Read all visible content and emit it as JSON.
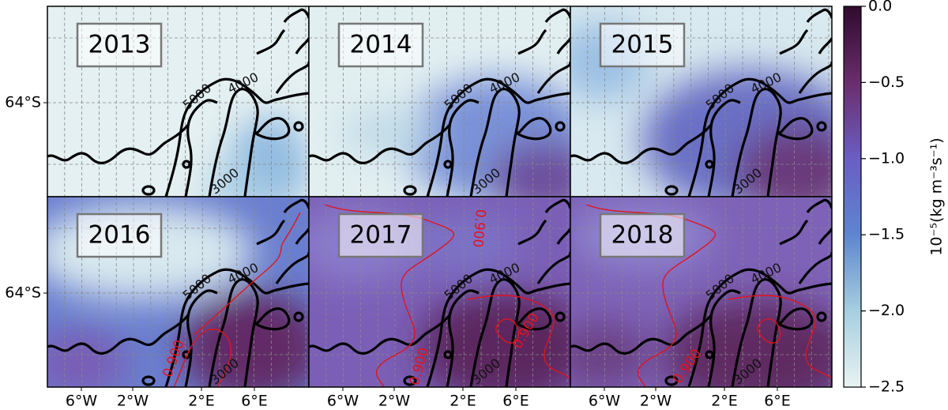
{
  "panels": [
    {
      "label": "2013",
      "contour_labels": [
        "5000",
        "4000",
        "3000"
      ]
    },
    {
      "label": "2014",
      "contour_labels": [
        "5000",
        "4000",
        "3000"
      ]
    },
    {
      "label": "2015",
      "contour_labels": [
        "5000",
        "4000",
        "3000"
      ]
    },
    {
      "label": "2016",
      "contour_labels": [
        "5000",
        "4000",
        "3000"
      ],
      "red_contour_labels": [
        "0.900"
      ]
    },
    {
      "label": "2017",
      "contour_labels": [
        "5000",
        "4000",
        "3000"
      ],
      "red_contour_labels": [
        "0.900",
        "0.900",
        "0.900"
      ]
    },
    {
      "label": "2018",
      "contour_labels": [
        "5000",
        "4000",
        "3000"
      ],
      "red_contour_labels": [
        "0.900"
      ]
    }
  ],
  "x_tick_labels": [
    "6°W",
    "2°W",
    "2°E",
    "6°E"
  ],
  "y_tick_labels": [
    "64°S"
  ],
  "colorbar": {
    "label": "10⁻⁵(kg m⁻³s⁻¹)",
    "lim": [
      -2.5,
      0
    ],
    "ticks": [
      {
        "value": 0,
        "label": "0.0"
      },
      {
        "value": -0.5,
        "label": "−0.5"
      },
      {
        "value": -1,
        "label": "−1.0"
      },
      {
        "value": -1.5,
        "label": "−1.5"
      },
      {
        "value": -2,
        "label": "−2.0"
      },
      {
        "value": -2.5,
        "label": "−2.5"
      }
    ]
  }
}
